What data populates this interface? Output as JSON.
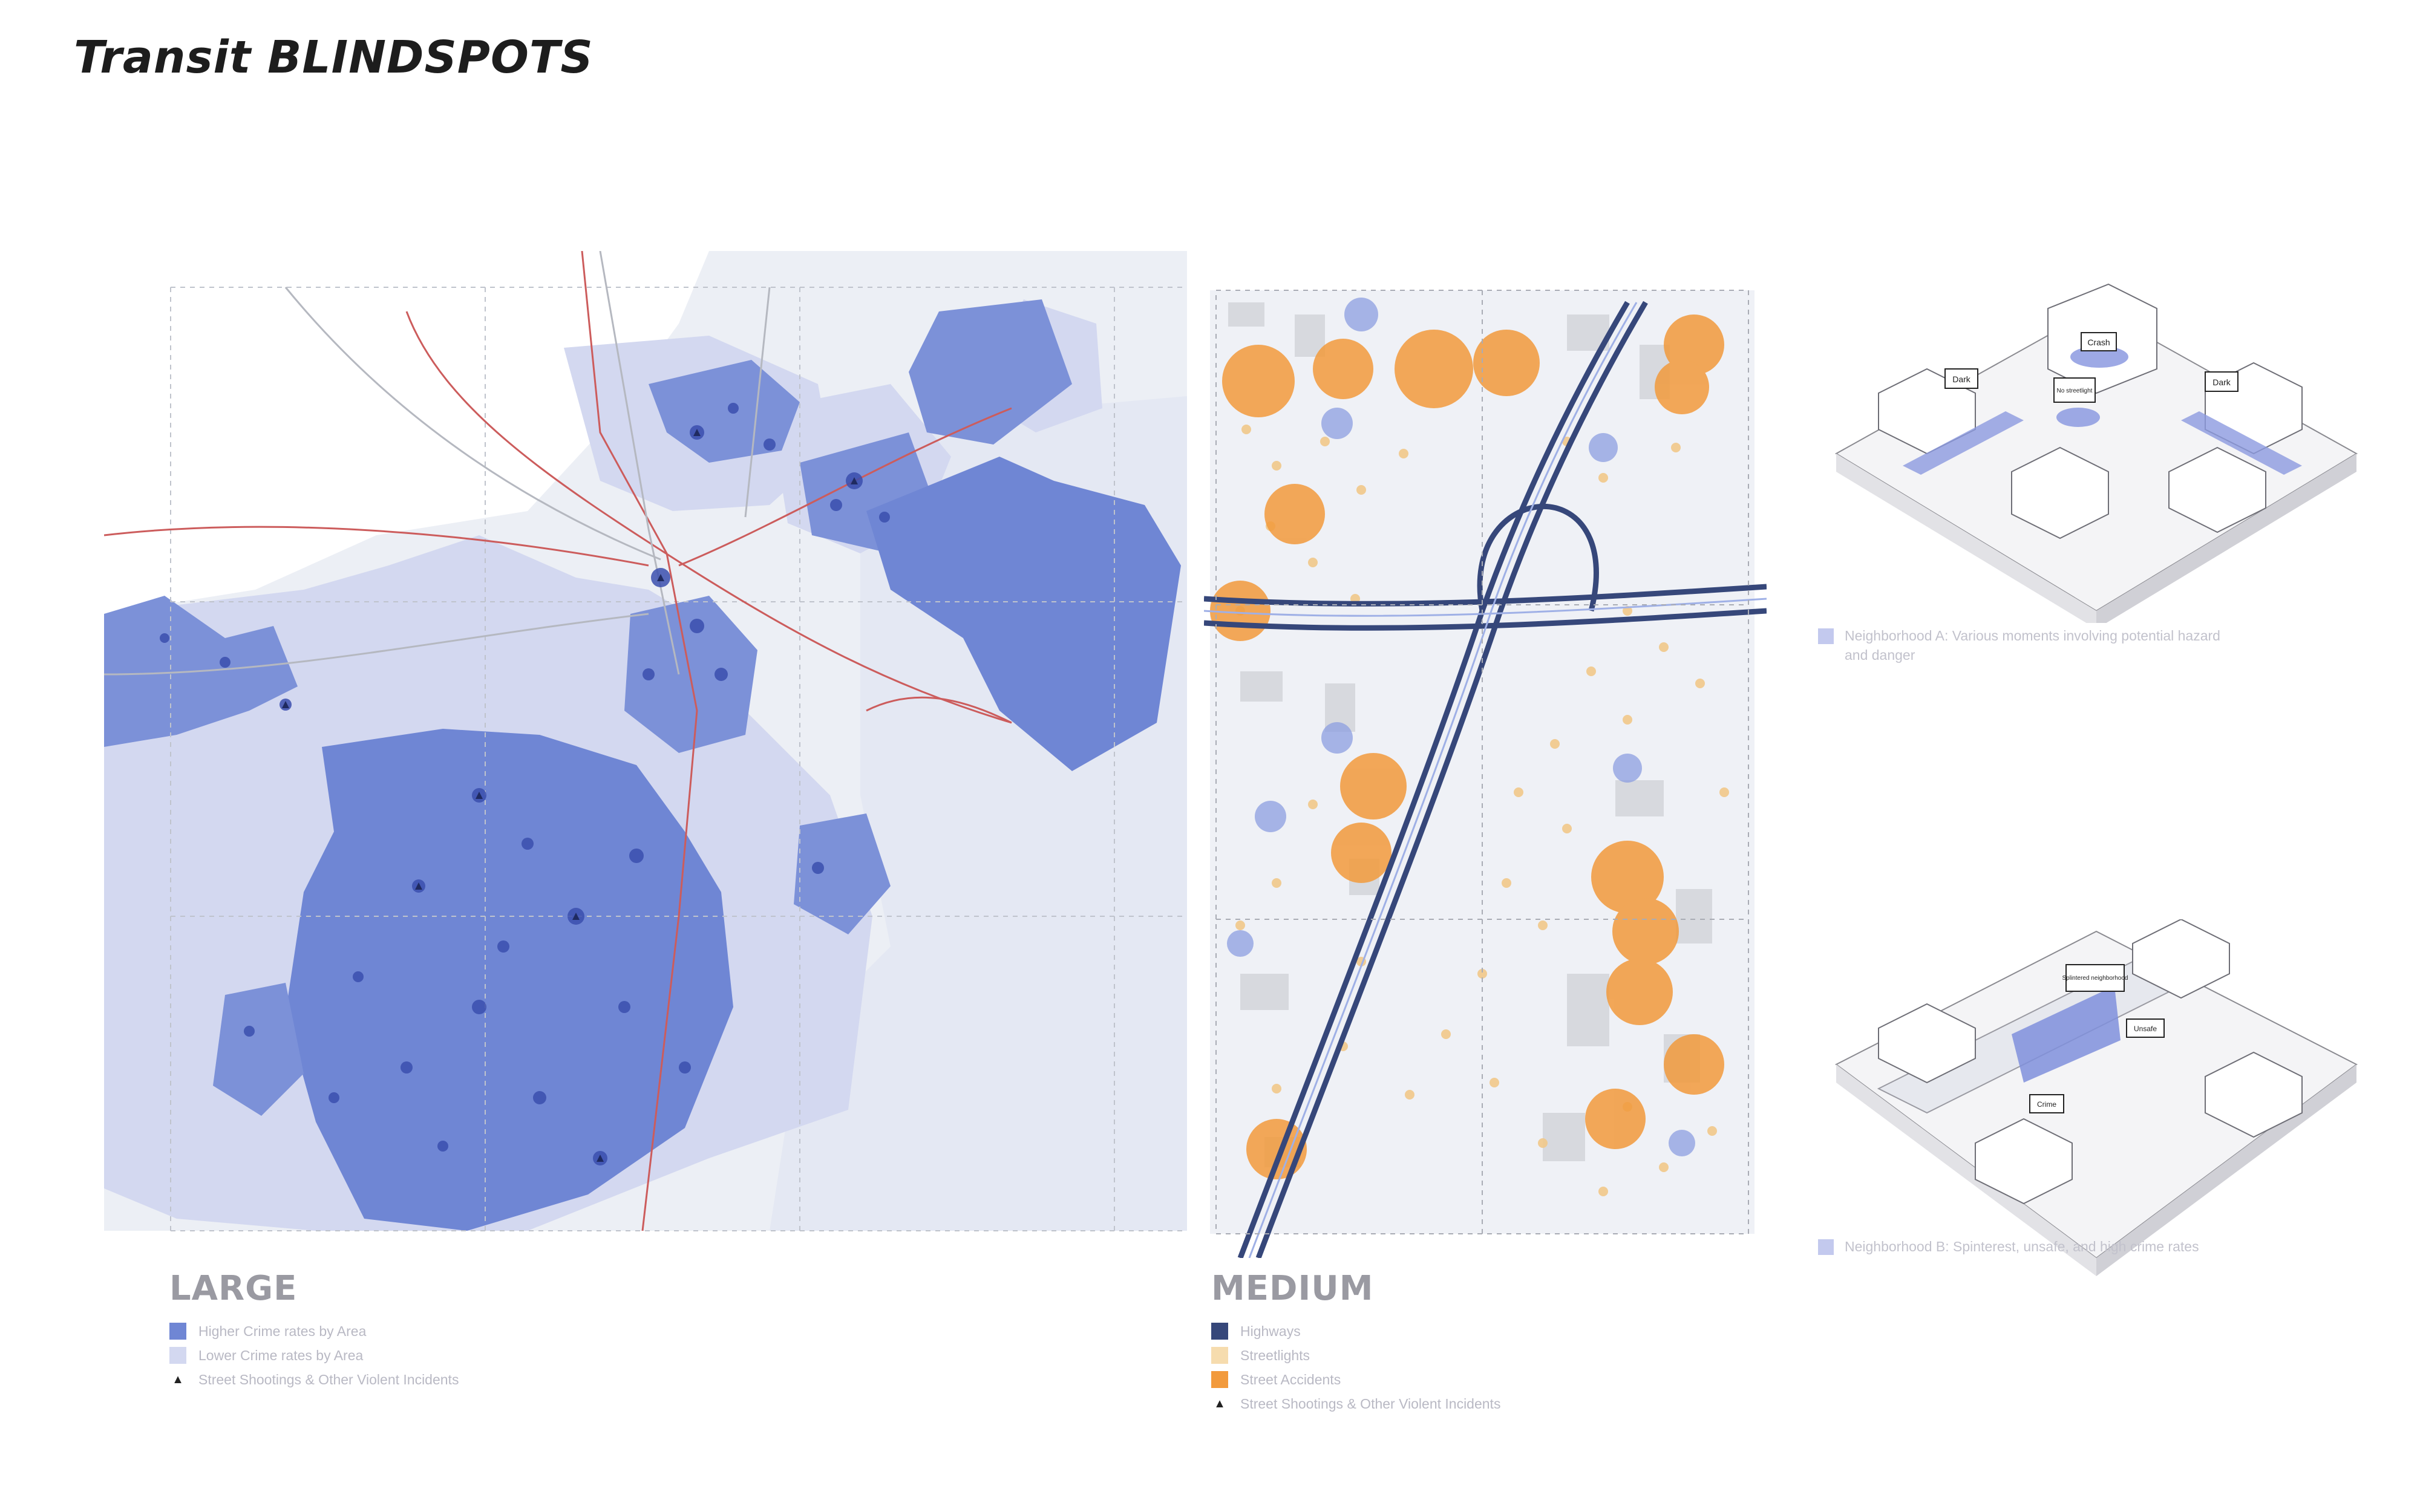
{
  "title": "Transit BLINDSPOTS",
  "colors": {
    "high_crime": "#6f86d4",
    "low_crime": "#d3d8f0",
    "water": "#e9edf3",
    "rail": "#cc5c5c",
    "highway": "#36477a",
    "streetlight": "#f1c88a",
    "accident": "#f29a3c",
    "incident_marker": "#1f2a60"
  },
  "large": {
    "heading": "LARGE",
    "legend": [
      {
        "label": "Higher Crime rates by Area",
        "swatch": "high_crime"
      },
      {
        "label": "Lower Crime rates by Area",
        "swatch": "low_crime"
      },
      {
        "label": "Street Shootings & Other Violent Incidents",
        "swatch": "triangle-icon"
      }
    ]
  },
  "medium": {
    "heading": "MEDIUM",
    "legend": [
      {
        "label": "Highways",
        "swatch": "highway"
      },
      {
        "label": "Streetlights",
        "swatch": "streetlight"
      },
      {
        "label": "Street Accidents",
        "swatch": "accident"
      },
      {
        "label": "Street Shootings & Other Violent Incidents",
        "swatch": "triangle-icon"
      }
    ]
  },
  "neighborhood_a": {
    "note": "Neighborhood A: Various moments involving potential hazard and danger",
    "callouts": [
      "Crash",
      "Dark",
      "No streetlight",
      "Dark"
    ]
  },
  "neighborhood_b": {
    "note": "Neighborhood B: Spinterest, unsafe, and high crime rates",
    "callouts": [
      "Splintered neighborhood",
      "Unsafe",
      "Crime"
    ]
  }
}
